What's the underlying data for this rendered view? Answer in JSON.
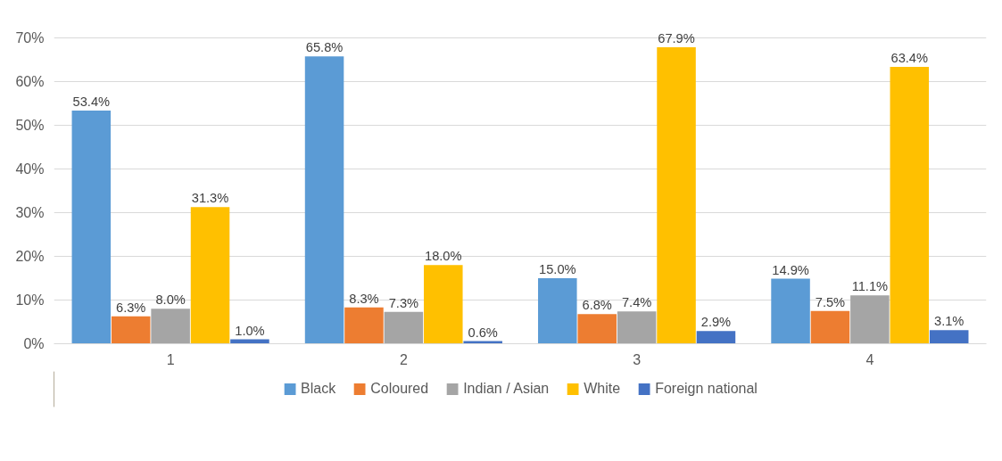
{
  "chart_data": {
    "type": "bar",
    "categories": [
      "1",
      "2",
      "3",
      "4"
    ],
    "series": [
      {
        "name": "Black",
        "color": "#5b9bd5",
        "values": [
          53.4,
          65.8,
          15.0,
          14.9
        ],
        "value_labels": [
          "53.4%",
          "65.8%",
          "15.0%",
          "14.9%"
        ]
      },
      {
        "name": "Coloured",
        "color": "#ed7d31",
        "values": [
          6.3,
          8.3,
          6.8,
          7.5
        ],
        "value_labels": [
          "6.3%",
          "8.3%",
          "6.8%",
          "7.5%"
        ]
      },
      {
        "name": "Indian / Asian",
        "color": "#a5a5a5",
        "values": [
          8.0,
          7.3,
          7.4,
          11.1
        ],
        "value_labels": [
          "8.0%",
          "7.3%",
          "7.4%",
          "11.1%"
        ]
      },
      {
        "name": "White",
        "color": "#ffc000",
        "values": [
          31.3,
          18.0,
          67.9,
          63.4
        ],
        "value_labels": [
          "31.3%",
          "18.0%",
          "67.9%",
          "63.4%"
        ]
      },
      {
        "name": "Foreign national",
        "color": "#4472c4",
        "values": [
          1.0,
          0.6,
          2.9,
          3.1
        ],
        "value_labels": [
          "1.0%",
          "0.6%",
          "2.9%",
          "3.1%"
        ]
      }
    ],
    "ylim": [
      0,
      70
    ],
    "yticks": [
      {
        "value": 0,
        "label": "0%"
      },
      {
        "value": 10,
        "label": "10%"
      },
      {
        "value": 20,
        "label": "20%"
      },
      {
        "value": 30,
        "label": "30%"
      },
      {
        "value": 40,
        "label": "40%"
      },
      {
        "value": 50,
        "label": "50%"
      },
      {
        "value": 60,
        "label": "60%"
      },
      {
        "value": 70,
        "label": "70%"
      }
    ],
    "grid": "y",
    "legend": "bottom"
  }
}
